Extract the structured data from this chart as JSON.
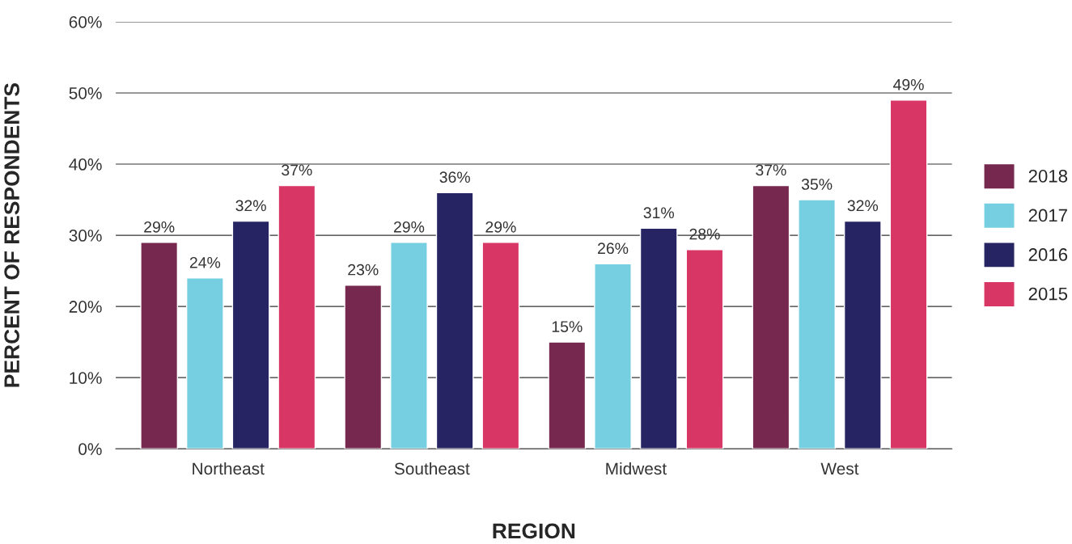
{
  "chart_data": {
    "type": "bar",
    "xlabel": "REGION",
    "ylabel": "PERCENT OF RESPONDENTS",
    "categories": [
      "Northeast",
      "Southeast",
      "Midwest",
      "West"
    ],
    "series": [
      {
        "name": "2018",
        "color": "#76284f",
        "values": [
          29,
          23,
          15,
          37
        ],
        "value_labels": [
          "29%",
          "23%",
          "15%",
          "37%"
        ]
      },
      {
        "name": "2017",
        "color": "#76cfe0",
        "values": [
          24,
          29,
          26,
          35
        ],
        "value_labels": [
          "24%",
          "29%",
          "26%",
          "35%"
        ]
      },
      {
        "name": "2016",
        "color": "#262462",
        "values": [
          32,
          36,
          31,
          32
        ],
        "value_labels": [
          "32%",
          "36%",
          "31%",
          "32%"
        ]
      },
      {
        "name": "2015",
        "color": "#d83665",
        "values": [
          37,
          29,
          28,
          49
        ],
        "value_labels": [
          "37%",
          "29%",
          "28%",
          "49%"
        ]
      }
    ],
    "ylim": [
      0,
      60
    ],
    "yticks": [
      {
        "value": 0,
        "label": "0%"
      },
      {
        "value": 10,
        "label": "10%"
      },
      {
        "value": 20,
        "label": "20%"
      },
      {
        "value": 30,
        "label": "30%"
      },
      {
        "value": 40,
        "label": "40%"
      },
      {
        "value": 50,
        "label": "50%"
      },
      {
        "value": 60,
        "label": "60%"
      }
    ],
    "grid": "y",
    "legend": "right"
  }
}
